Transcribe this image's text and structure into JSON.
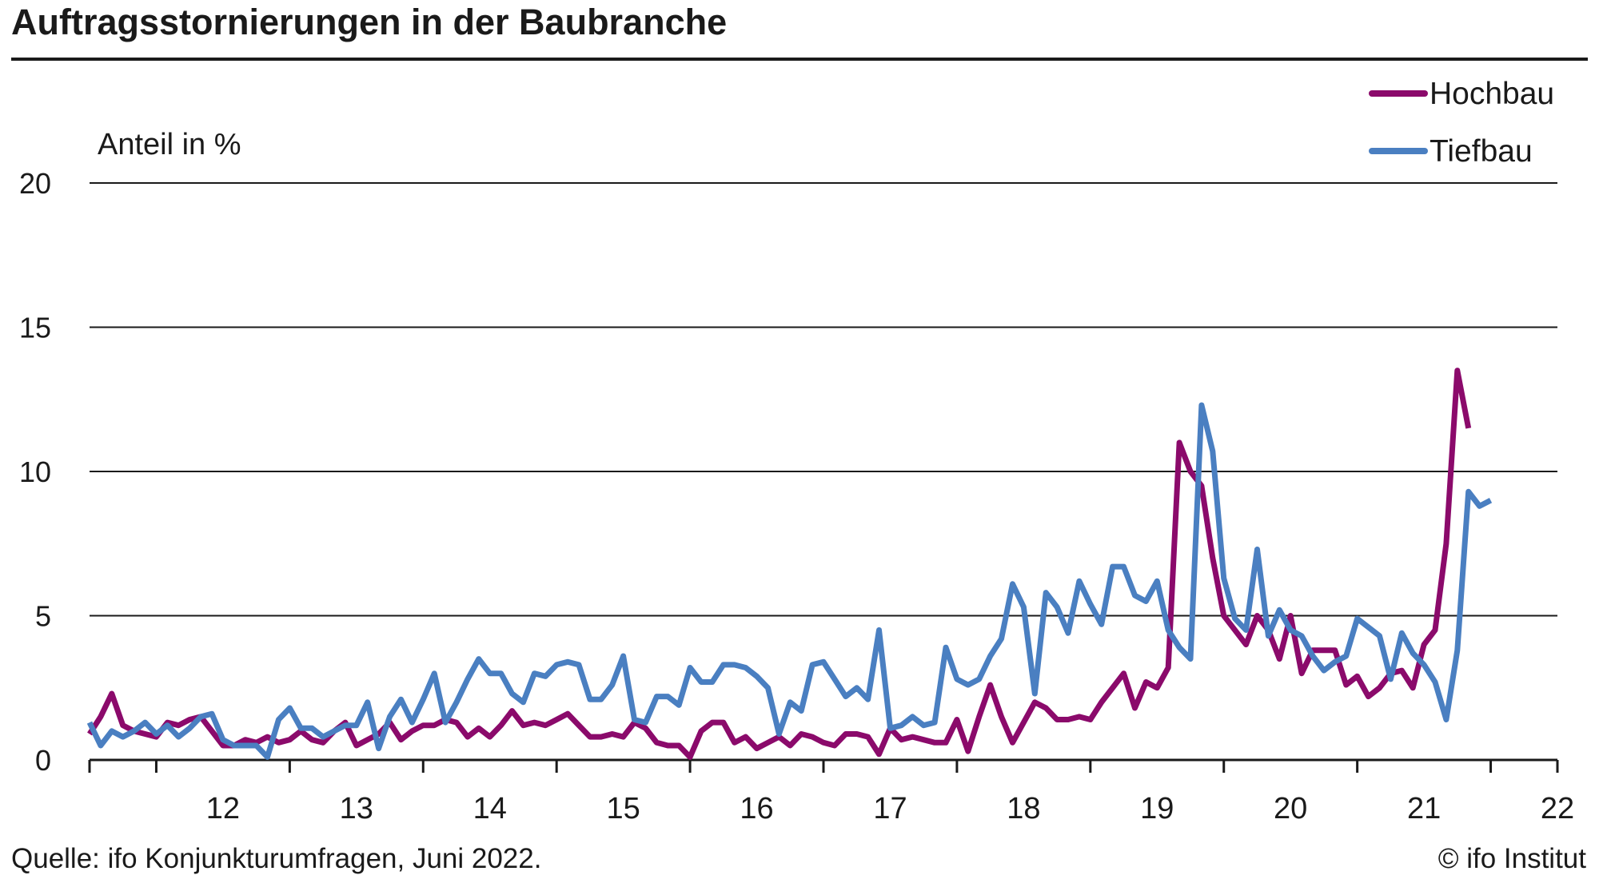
{
  "title": "Auftragsstornierungen in der Baubranche",
  "source": "Quelle: ifo Konjunkturumfragen, Juni 2022.",
  "copyright": "© ifo Institut",
  "colors": {
    "hochbau": "#8B0A6B",
    "tiefbau": "#4A7FC1",
    "grid": "#1a1a1a",
    "text": "#1a1a1a"
  },
  "chart_data": {
    "type": "line",
    "title": "Auftragsstornierungen in der Baubranche",
    "ylabel": "Anteil in %",
    "xlabel": "",
    "ylim": [
      0,
      20
    ],
    "yticks": [
      0,
      5,
      10,
      15,
      20
    ],
    "xlim": [
      2011.5,
      2022.5
    ],
    "xticks": [
      "12",
      "13",
      "14",
      "15",
      "16",
      "17",
      "18",
      "19",
      "20",
      "21",
      "22"
    ],
    "grid": "horizontal",
    "legend_position": "top-right",
    "x_unit": "monthly",
    "x_start": "2011-07",
    "series": [
      {
        "name": "Hochbau",
        "color": "#8B0A6B",
        "values": [
          0.9,
          1.5,
          2.3,
          1.2,
          1.0,
          0.9,
          0.8,
          1.3,
          1.2,
          1.4,
          1.5,
          1.0,
          0.5,
          0.5,
          0.7,
          0.6,
          0.8,
          0.6,
          0.7,
          1.0,
          0.7,
          0.6,
          1.0,
          1.3,
          0.5,
          0.7,
          0.9,
          1.3,
          0.7,
          1.0,
          1.2,
          1.2,
          1.4,
          1.3,
          0.8,
          1.1,
          0.8,
          1.2,
          1.7,
          1.2,
          1.3,
          1.2,
          1.4,
          1.6,
          1.2,
          0.8,
          0.8,
          0.9,
          0.8,
          1.3,
          1.1,
          0.6,
          0.5,
          0.5,
          0.1,
          1.0,
          1.3,
          1.3,
          0.6,
          0.8,
          0.4,
          0.6,
          0.8,
          0.5,
          0.9,
          0.8,
          0.6,
          0.5,
          0.9,
          0.9,
          0.8,
          0.2,
          1.1,
          0.7,
          0.8,
          0.7,
          0.6,
          0.6,
          1.4,
          0.3,
          1.5,
          2.6,
          1.5,
          0.6,
          1.3,
          2.0,
          1.8,
          1.4,
          1.4,
          1.5,
          1.4,
          2.0,
          2.5,
          3.0,
          1.8,
          2.7,
          2.5,
          3.2,
          11.0,
          10.0,
          9.5,
          7.0,
          5.0,
          4.5,
          4.0,
          5.0,
          4.5,
          3.5,
          5.0,
          3.0,
          3.8,
          3.8,
          3.8,
          2.6,
          2.9,
          2.2,
          2.5,
          3.0,
          3.1,
          2.5,
          4.0,
          4.5,
          7.5,
          13.5,
          11.5
        ]
      },
      {
        "name": "Tiefbau",
        "color": "#4A7FC1",
        "values": [
          1.3,
          0.5,
          1.0,
          0.8,
          1.0,
          1.3,
          0.9,
          1.2,
          0.8,
          1.1,
          1.5,
          1.6,
          0.7,
          0.5,
          0.5,
          0.5,
          0.1,
          1.4,
          1.8,
          1.1,
          1.1,
          0.8,
          1.0,
          1.2,
          1.2,
          2.0,
          0.4,
          1.5,
          2.1,
          1.3,
          2.1,
          3.0,
          1.3,
          2.0,
          2.8,
          3.5,
          3.0,
          3.0,
          2.3,
          2.0,
          3.0,
          2.9,
          3.3,
          3.4,
          3.3,
          2.1,
          2.1,
          2.6,
          3.6,
          1.4,
          1.3,
          2.2,
          2.2,
          1.9,
          3.2,
          2.7,
          2.7,
          3.3,
          3.3,
          3.2,
          2.9,
          2.5,
          0.9,
          2.0,
          1.7,
          3.3,
          3.4,
          2.8,
          2.2,
          2.5,
          2.1,
          4.5,
          1.1,
          1.2,
          1.5,
          1.2,
          1.3,
          3.9,
          2.8,
          2.6,
          2.8,
          3.6,
          4.2,
          6.1,
          5.3,
          2.3,
          5.8,
          5.3,
          4.4,
          6.2,
          5.4,
          4.7,
          6.7,
          6.7,
          5.7,
          5.5,
          6.2,
          4.5,
          3.9,
          3.5,
          12.3,
          10.7,
          6.3,
          4.9,
          4.5,
          7.3,
          4.3,
          5.2,
          4.5,
          4.3,
          3.6,
          3.1,
          3.4,
          3.6,
          4.9,
          4.6,
          4.3,
          2.8,
          4.4,
          3.7,
          3.3,
          2.7,
          1.4,
          3.8,
          9.3,
          8.8,
          9.0
        ]
      }
    ]
  }
}
